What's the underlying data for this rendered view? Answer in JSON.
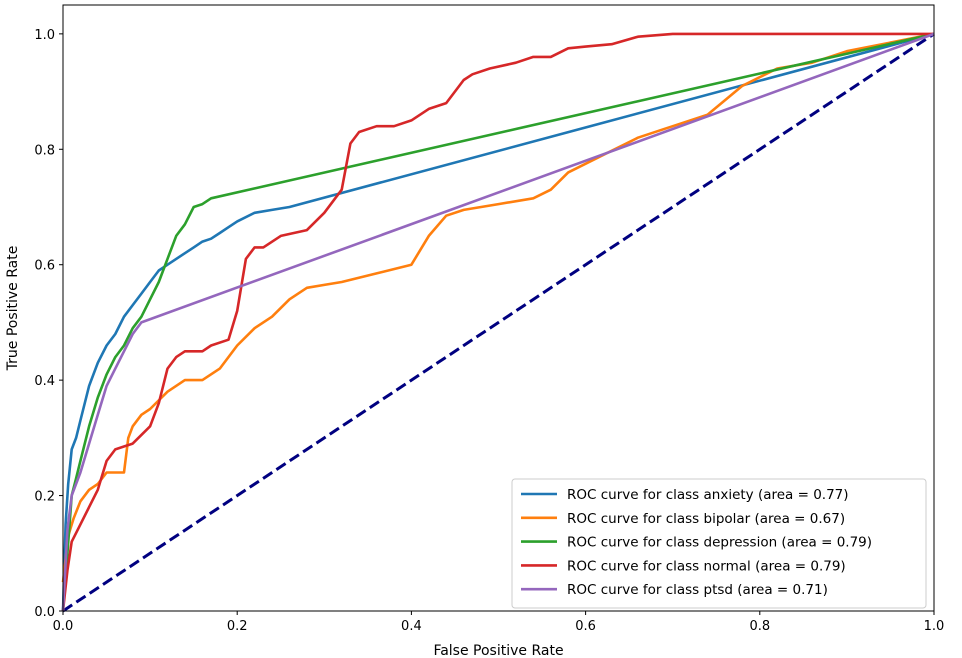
{
  "chart_data": {
    "type": "line",
    "title": "",
    "xlabel": "False Positive Rate",
    "ylabel": "True Positive Rate",
    "xlim": [
      0.0,
      1.0
    ],
    "ylim": [
      0.0,
      1.05
    ],
    "xticks": [
      0.0,
      0.2,
      0.4,
      0.6,
      0.8,
      1.0
    ],
    "xtick_labels": [
      "0.0",
      "0.2",
      "0.4",
      "0.6",
      "0.8",
      "1.0"
    ],
    "yticks": [
      0.0,
      0.2,
      0.4,
      0.6,
      0.8,
      1.0
    ],
    "ytick_labels": [
      "0.0",
      "0.2",
      "0.4",
      "0.6",
      "0.8",
      "1.0"
    ],
    "grid": false,
    "legend_position": "lower right",
    "reference_line": {
      "x": [
        0,
        1
      ],
      "y": [
        0,
        1
      ],
      "color": "#000080",
      "style": "dashed"
    },
    "series": [
      {
        "name": "ROC curve for class anxiety (area = 0.77)",
        "color": "#1f77b4",
        "x": [
          0,
          0.003,
          0.006,
          0.01,
          0.015,
          0.02,
          0.03,
          0.04,
          0.05,
          0.06,
          0.07,
          0.08,
          0.09,
          0.1,
          0.11,
          0.12,
          0.13,
          0.14,
          0.15,
          0.16,
          0.17,
          0.18,
          0.19,
          0.2,
          0.22,
          0.24,
          0.26,
          1.0
        ],
        "y": [
          0.0,
          0.15,
          0.22,
          0.28,
          0.3,
          0.33,
          0.39,
          0.43,
          0.46,
          0.48,
          0.51,
          0.53,
          0.55,
          0.57,
          0.59,
          0.6,
          0.61,
          0.62,
          0.63,
          0.64,
          0.645,
          0.655,
          0.665,
          0.675,
          0.69,
          0.695,
          0.7,
          1.0
        ]
      },
      {
        "name": "ROC curve for class bipolar (area = 0.67)",
        "color": "#ff7f0e",
        "x": [
          0,
          0.006,
          0.012,
          0.02,
          0.03,
          0.04,
          0.05,
          0.06,
          0.07,
          0.075,
          0.08,
          0.09,
          0.1,
          0.12,
          0.14,
          0.16,
          0.18,
          0.2,
          0.22,
          0.24,
          0.26,
          0.28,
          0.3,
          0.32,
          0.36,
          0.4,
          0.42,
          0.44,
          0.46,
          0.5,
          0.54,
          0.56,
          0.58,
          0.62,
          0.66,
          0.7,
          0.74,
          0.78,
          0.82,
          0.86,
          0.9,
          1.0
        ],
        "y": [
          0.05,
          0.13,
          0.16,
          0.19,
          0.21,
          0.22,
          0.24,
          0.24,
          0.24,
          0.3,
          0.32,
          0.34,
          0.35,
          0.38,
          0.4,
          0.4,
          0.42,
          0.46,
          0.49,
          0.51,
          0.54,
          0.56,
          0.565,
          0.57,
          0.585,
          0.6,
          0.65,
          0.685,
          0.695,
          0.705,
          0.715,
          0.73,
          0.76,
          0.79,
          0.82,
          0.84,
          0.86,
          0.91,
          0.94,
          0.95,
          0.97,
          1.0
        ]
      },
      {
        "name": "ROC curve for class depression (area = 0.79)",
        "color": "#2ca02c",
        "x": [
          0,
          0.005,
          0.01,
          0.015,
          0.02,
          0.03,
          0.04,
          0.05,
          0.06,
          0.07,
          0.08,
          0.09,
          0.1,
          0.11,
          0.12,
          0.13,
          0.14,
          0.15,
          0.16,
          0.17,
          1.0
        ],
        "y": [
          0.0,
          0.1,
          0.2,
          0.23,
          0.26,
          0.32,
          0.37,
          0.41,
          0.44,
          0.46,
          0.49,
          0.51,
          0.54,
          0.57,
          0.61,
          0.65,
          0.67,
          0.7,
          0.705,
          0.715,
          1.0
        ]
      },
      {
        "name": "ROC curve for class normal (area = 0.79)",
        "color": "#d62728",
        "x": [
          0,
          0.005,
          0.01,
          0.02,
          0.03,
          0.04,
          0.05,
          0.06,
          0.08,
          0.1,
          0.11,
          0.12,
          0.13,
          0.14,
          0.15,
          0.16,
          0.17,
          0.19,
          0.2,
          0.21,
          0.22,
          0.23,
          0.25,
          0.28,
          0.3,
          0.32,
          0.33,
          0.34,
          0.36,
          0.38,
          0.4,
          0.42,
          0.44,
          0.46,
          0.47,
          0.49,
          0.52,
          0.54,
          0.56,
          0.58,
          0.6,
          0.63,
          0.66,
          0.7,
          0.75,
          1.0
        ],
        "y": [
          0.0,
          0.07,
          0.12,
          0.15,
          0.18,
          0.21,
          0.26,
          0.28,
          0.29,
          0.32,
          0.36,
          0.42,
          0.44,
          0.45,
          0.45,
          0.45,
          0.46,
          0.47,
          0.52,
          0.61,
          0.63,
          0.63,
          0.65,
          0.66,
          0.69,
          0.73,
          0.81,
          0.83,
          0.84,
          0.84,
          0.85,
          0.87,
          0.88,
          0.92,
          0.93,
          0.94,
          0.95,
          0.96,
          0.96,
          0.975,
          0.978,
          0.982,
          0.995,
          1.0,
          1.0,
          1.0
        ]
      },
      {
        "name": "ROC curve for class ptsd (area = 0.71)",
        "color": "#9467bd",
        "x": [
          0,
          0.005,
          0.01,
          0.02,
          0.03,
          0.04,
          0.05,
          0.06,
          0.07,
          0.08,
          0.09,
          1.0
        ],
        "y": [
          0.0,
          0.14,
          0.2,
          0.24,
          0.29,
          0.34,
          0.39,
          0.42,
          0.45,
          0.48,
          0.5,
          1.0
        ]
      }
    ]
  }
}
